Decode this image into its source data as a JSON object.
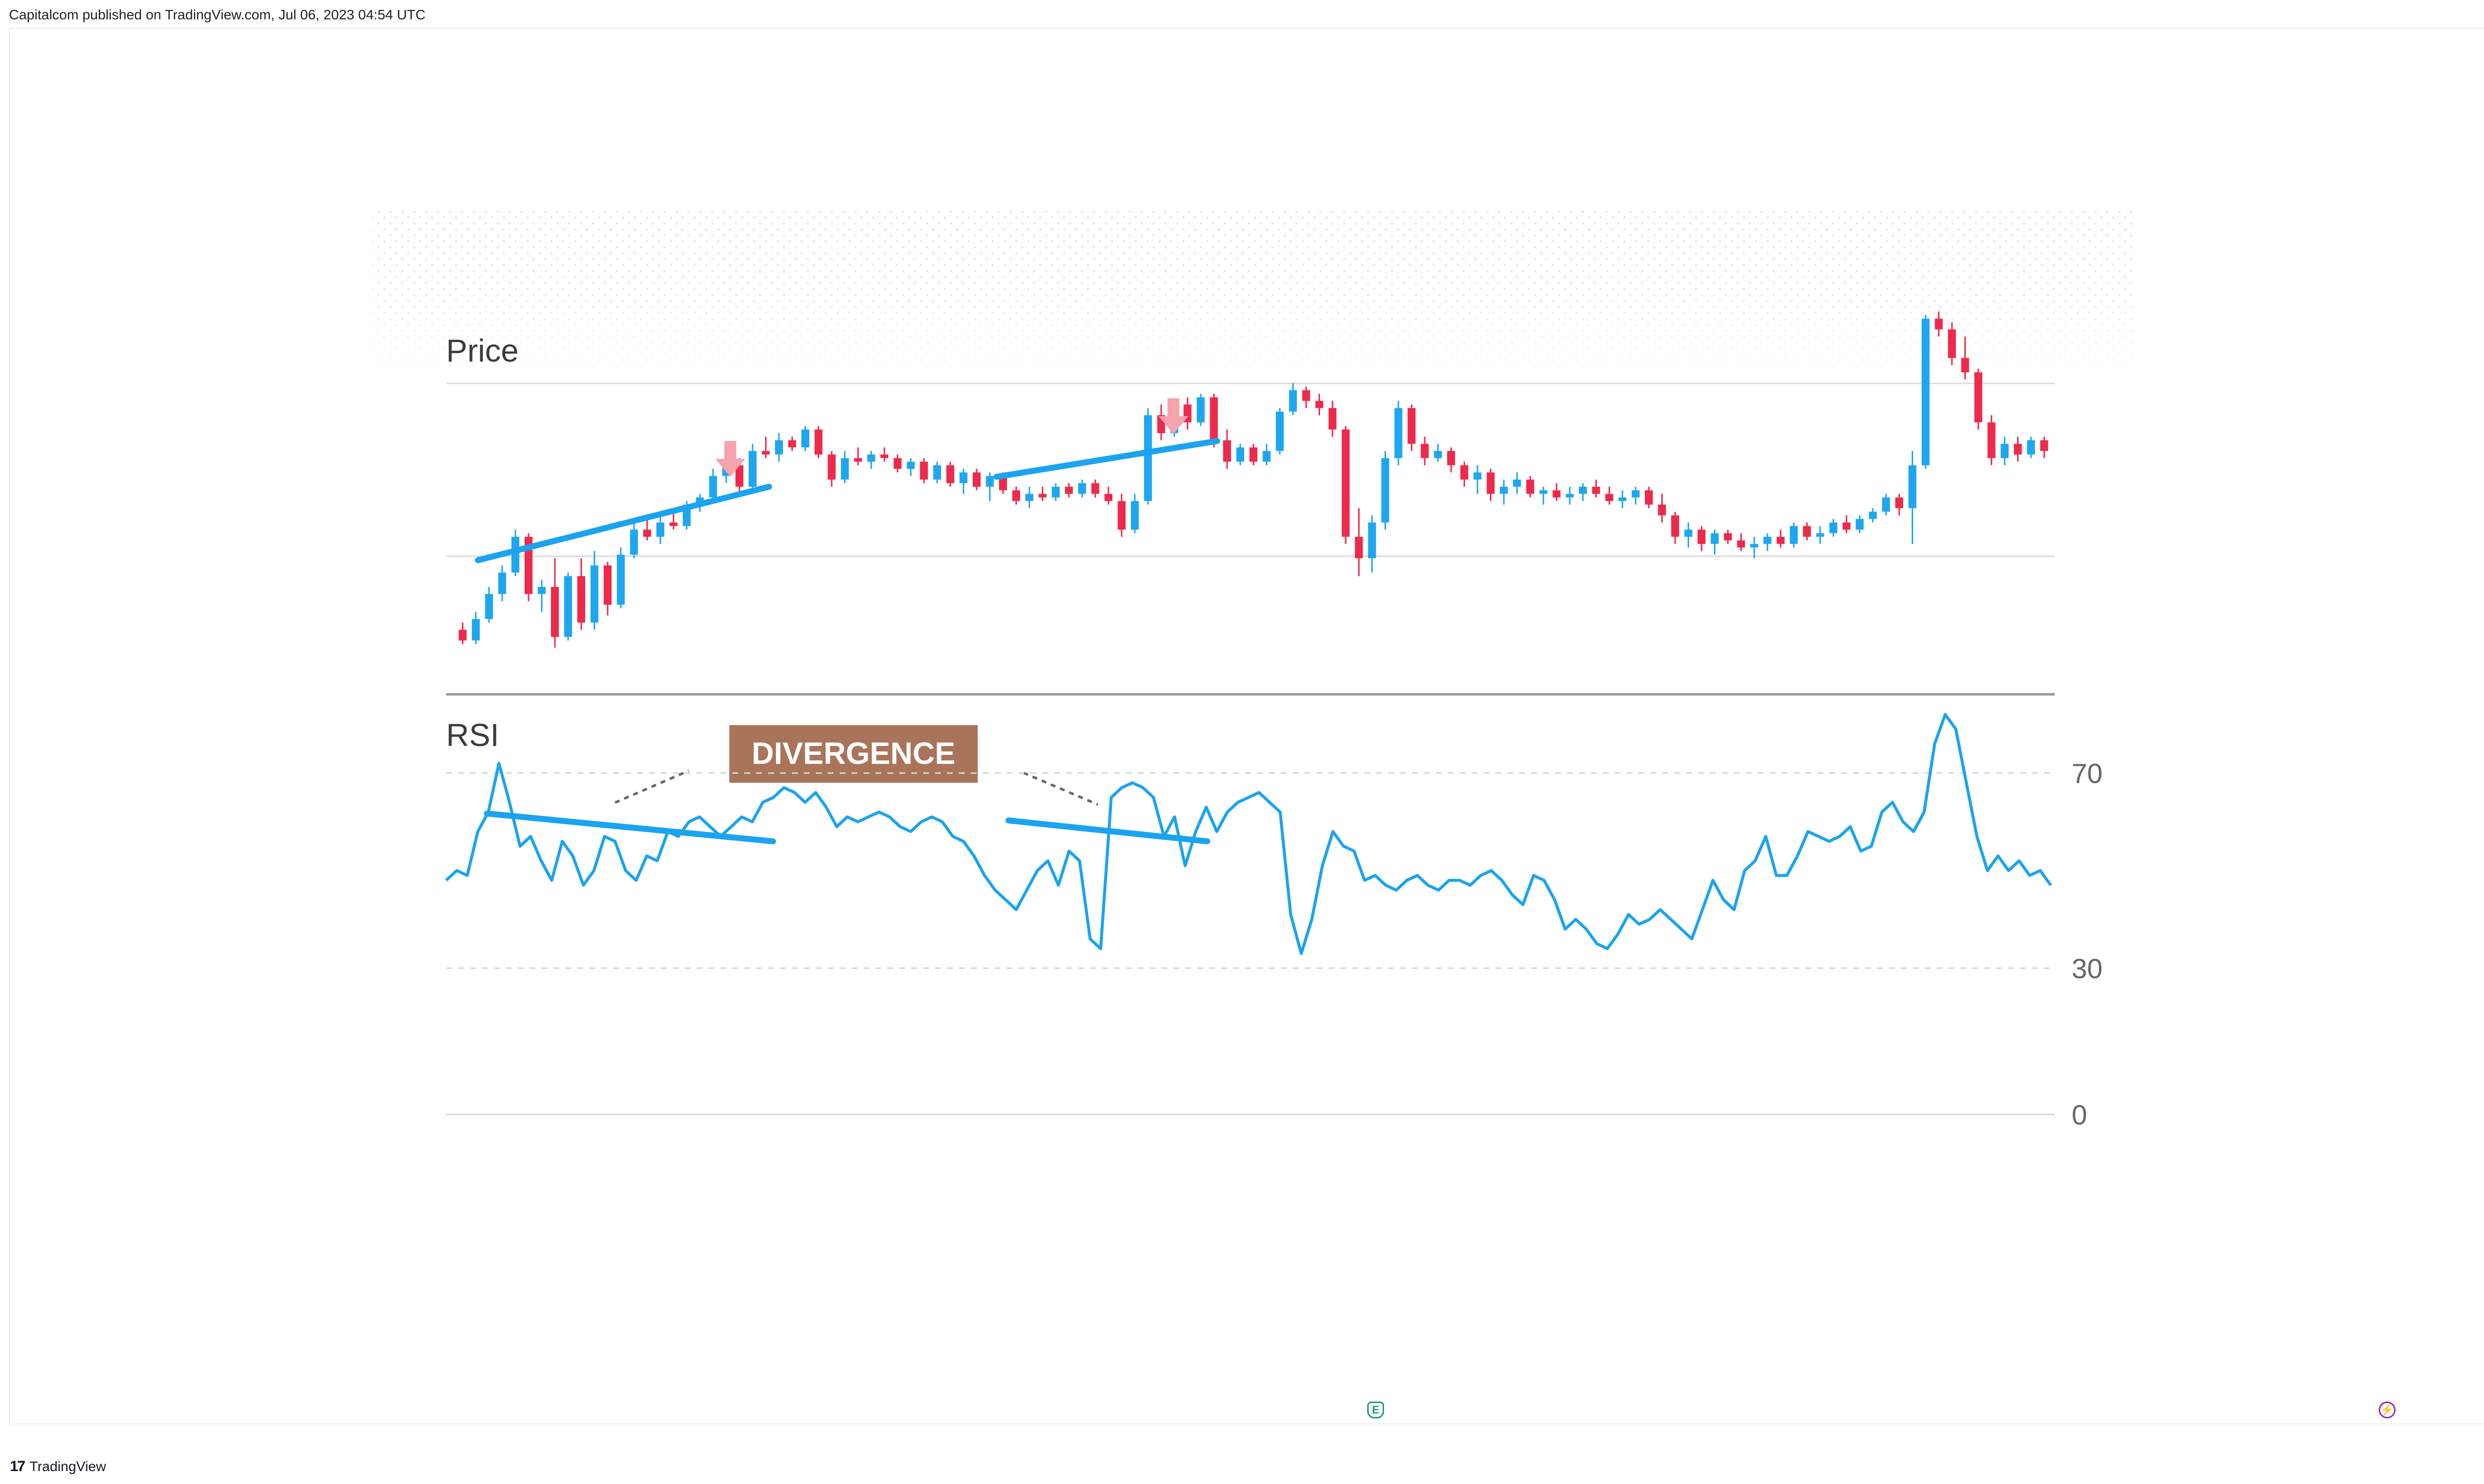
{
  "header": {
    "attribution": "Capitalcom published on TradingView.com, Jul 06, 2023 04:54 UTC"
  },
  "footer": {
    "brand_text": "TradingView",
    "brand_logo": "17"
  },
  "icons": {
    "earnings": "earnings-icon",
    "flash": "flash-icon"
  },
  "colors": {
    "up": "#1ea7f0",
    "down": "#ee2a4c",
    "trendline": "#1aa3ef",
    "rsi": "#1aa3ef",
    "divergence_box": "#a9745a",
    "arrow": "#f5a3ad",
    "grid": "#d6d6d6"
  },
  "chart_data": [
    {
      "type": "candlestick",
      "title": "Price",
      "notes": "Candlestick price panel; values read on a relative 0-100 scale (no price axis printed).",
      "ylim": [
        0,
        100
      ],
      "candles": [
        [
          10,
          12,
          6,
          7
        ],
        [
          7,
          15,
          6,
          13
        ],
        [
          13,
          22,
          12,
          20
        ],
        [
          20,
          28,
          18,
          26
        ],
        [
          26,
          38,
          25,
          36
        ],
        [
          36,
          37,
          18,
          20
        ],
        [
          20,
          24,
          15,
          22
        ],
        [
          22,
          30,
          5,
          8
        ],
        [
          8,
          26,
          7,
          25
        ],
        [
          25,
          30,
          10,
          12
        ],
        [
          12,
          32,
          10,
          28
        ],
        [
          28,
          29,
          14,
          17
        ],
        [
          17,
          33,
          16,
          31
        ],
        [
          31,
          40,
          30,
          38
        ],
        [
          38,
          42,
          35,
          36
        ],
        [
          36,
          42,
          34,
          40
        ],
        [
          40,
          44,
          38,
          39
        ],
        [
          39,
          46,
          38,
          45
        ],
        [
          45,
          48,
          43,
          47
        ],
        [
          47,
          55,
          46,
          53
        ],
        [
          53,
          58,
          51,
          56
        ],
        [
          56,
          58,
          48,
          50
        ],
        [
          50,
          62,
          49,
          60
        ],
        [
          60,
          64,
          58,
          59
        ],
        [
          59,
          65,
          57,
          63
        ],
        [
          63,
          64,
          60,
          61
        ],
        [
          61,
          67,
          60,
          66
        ],
        [
          66,
          67,
          58,
          59
        ],
        [
          59,
          60,
          50,
          52
        ],
        [
          52,
          60,
          51,
          58
        ],
        [
          58,
          61,
          56,
          57
        ],
        [
          57,
          60,
          55,
          59
        ],
        [
          59,
          61,
          57,
          58
        ],
        [
          58,
          59,
          54,
          55
        ],
        [
          55,
          58,
          53,
          57
        ],
        [
          57,
          58,
          51,
          52
        ],
        [
          52,
          57,
          51,
          56
        ],
        [
          56,
          57,
          50,
          51
        ],
        [
          51,
          55,
          48,
          54
        ],
        [
          54,
          55,
          49,
          50
        ],
        [
          50,
          54,
          46,
          53
        ],
        [
          53,
          54,
          48,
          49
        ],
        [
          49,
          50,
          45,
          46
        ],
        [
          46,
          50,
          44,
          48
        ],
        [
          48,
          50,
          46,
          47
        ],
        [
          47,
          51,
          46,
          50
        ],
        [
          50,
          51,
          47,
          48
        ],
        [
          48,
          52,
          47,
          51
        ],
        [
          51,
          52,
          47,
          48
        ],
        [
          48,
          50,
          45,
          46
        ],
        [
          46,
          48,
          36,
          38
        ],
        [
          38,
          48,
          37,
          46
        ],
        [
          46,
          72,
          45,
          70
        ],
        [
          70,
          73,
          63,
          65
        ],
        [
          65,
          74,
          64,
          73
        ],
        [
          73,
          75,
          66,
          68
        ],
        [
          68,
          76,
          67,
          75
        ],
        [
          75,
          76,
          61,
          63
        ],
        [
          63,
          66,
          55,
          57
        ],
        [
          57,
          62,
          56,
          61
        ],
        [
          61,
          62,
          56,
          57
        ],
        [
          57,
          62,
          56,
          60
        ],
        [
          60,
          72,
          59,
          71
        ],
        [
          71,
          79,
          70,
          77
        ],
        [
          77,
          78,
          72,
          74
        ],
        [
          74,
          76,
          70,
          72
        ],
        [
          72,
          74,
          64,
          66
        ],
        [
          66,
          67,
          34,
          36
        ],
        [
          36,
          44,
          25,
          30
        ],
        [
          30,
          42,
          26,
          40
        ],
        [
          40,
          60,
          38,
          58
        ],
        [
          58,
          74,
          56,
          72
        ],
        [
          72,
          73,
          60,
          62
        ],
        [
          62,
          64,
          56,
          58
        ],
        [
          58,
          62,
          57,
          60
        ],
        [
          60,
          61,
          54,
          56
        ],
        [
          56,
          57,
          50,
          52
        ],
        [
          52,
          56,
          48,
          54
        ],
        [
          54,
          55,
          46,
          48
        ],
        [
          48,
          52,
          45,
          50
        ],
        [
          50,
          54,
          48,
          52
        ],
        [
          52,
          53,
          47,
          48
        ],
        [
          48,
          50,
          45,
          49
        ],
        [
          49,
          51,
          46,
          47
        ],
        [
          47,
          50,
          45,
          48
        ],
        [
          48,
          51,
          46,
          50
        ],
        [
          50,
          52,
          47,
          48
        ],
        [
          48,
          50,
          45,
          46
        ],
        [
          46,
          49,
          44,
          47
        ],
        [
          47,
          50,
          45,
          49
        ],
        [
          49,
          50,
          44,
          45
        ],
        [
          45,
          48,
          40,
          42
        ],
        [
          42,
          43,
          34,
          36
        ],
        [
          36,
          40,
          33,
          38
        ],
        [
          38,
          39,
          32,
          34
        ],
        [
          34,
          38,
          31,
          37
        ],
        [
          37,
          38,
          34,
          35
        ],
        [
          35,
          37,
          32,
          33
        ],
        [
          33,
          36,
          30,
          34
        ],
        [
          34,
          37,
          32,
          36
        ],
        [
          36,
          38,
          33,
          34
        ],
        [
          34,
          40,
          33,
          39
        ],
        [
          39,
          40,
          35,
          36
        ],
        [
          36,
          39,
          34,
          37
        ],
        [
          37,
          41,
          36,
          40
        ],
        [
          40,
          42,
          37,
          38
        ],
        [
          38,
          42,
          37,
          41
        ],
        [
          41,
          44,
          40,
          43
        ],
        [
          43,
          48,
          42,
          47
        ],
        [
          47,
          48,
          42,
          44
        ],
        [
          44,
          60,
          34,
          56
        ],
        [
          56,
          98,
          55,
          97
        ],
        [
          97,
          99,
          92,
          94
        ],
        [
          94,
          96,
          84,
          86
        ],
        [
          86,
          92,
          80,
          82
        ],
        [
          82,
          83,
          66,
          68
        ],
        [
          68,
          70,
          56,
          58
        ],
        [
          58,
          64,
          56,
          62
        ],
        [
          62,
          64,
          57,
          59
        ],
        [
          59,
          64,
          58,
          63
        ],
        [
          63,
          64,
          58,
          60
        ]
      ]
    },
    {
      "type": "line",
      "title": "RSI",
      "ylim": [
        0,
        90
      ],
      "yticks": [
        "70",
        "30",
        "0"
      ],
      "ytick_values": [
        70,
        30,
        0
      ],
      "gridlines": [
        70,
        30,
        0
      ],
      "series": [
        {
          "values": [
            48,
            50,
            49,
            58,
            62,
            72,
            64,
            55,
            57,
            52,
            48,
            56,
            53,
            47,
            50,
            57,
            56,
            50,
            48,
            53,
            52,
            58,
            57,
            60,
            61,
            59,
            57,
            59,
            61,
            60,
            64,
            65,
            67,
            66,
            64,
            66,
            63,
            59,
            61,
            60,
            61,
            62,
            61,
            59,
            58,
            60,
            61,
            60,
            57,
            56,
            53,
            49,
            46,
            44,
            42,
            46,
            50,
            52,
            47,
            54,
            52,
            36,
            34,
            65,
            67,
            68,
            67,
            65,
            57,
            61,
            51,
            58,
            63,
            58,
            62,
            64,
            65,
            66,
            64,
            62,
            41,
            33,
            40,
            51,
            58,
            55,
            54,
            48,
            49,
            47,
            46,
            48,
            49,
            47,
            46,
            48,
            48,
            47,
            49,
            50,
            48,
            45,
            43,
            49,
            48,
            44,
            38,
            40,
            38,
            35,
            34,
            37,
            41,
            39,
            40,
            42,
            40,
            38,
            36,
            42,
            48,
            44,
            42,
            50,
            52,
            57,
            49,
            49,
            53,
            58,
            57,
            56,
            57,
            59,
            54,
            55,
            62,
            64,
            60,
            58,
            62,
            76,
            82,
            79,
            68,
            57,
            50,
            53,
            50,
            52,
            49,
            50,
            47
          ]
        }
      ],
      "annotations": [
        {
          "type": "label",
          "text": "DIVERGENCE"
        }
      ]
    }
  ]
}
